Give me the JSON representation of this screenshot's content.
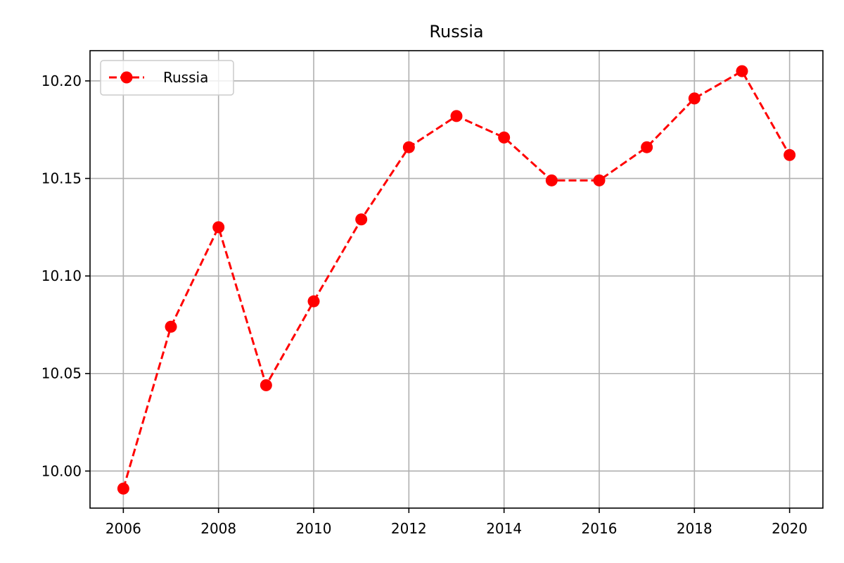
{
  "chart_data": {
    "type": "line",
    "title": "Russia",
    "xlabel": "",
    "ylabel": "",
    "x": [
      2006,
      2007,
      2008,
      2009,
      2010,
      2011,
      2012,
      2013,
      2014,
      2015,
      2016,
      2017,
      2018,
      2019,
      2020
    ],
    "series": [
      {
        "name": "Russia",
        "values": [
          9.991,
          10.074,
          10.125,
          10.044,
          10.087,
          10.129,
          10.166,
          10.182,
          10.171,
          10.149,
          10.149,
          10.166,
          10.191,
          10.205,
          10.162
        ],
        "color": "#ff0000",
        "line_style": "dashed",
        "marker": "circle"
      }
    ],
    "x_ticks": [
      "2006",
      "2008",
      "2010",
      "2012",
      "2014",
      "2016",
      "2018",
      "2020"
    ],
    "y_ticks": [
      "10.00",
      "10.05",
      "10.10",
      "10.15",
      "10.20"
    ],
    "xlim": [
      2005.3,
      2020.7
    ],
    "ylim": [
      9.981,
      10.2155
    ],
    "grid": true,
    "legend_position": "upper left"
  }
}
